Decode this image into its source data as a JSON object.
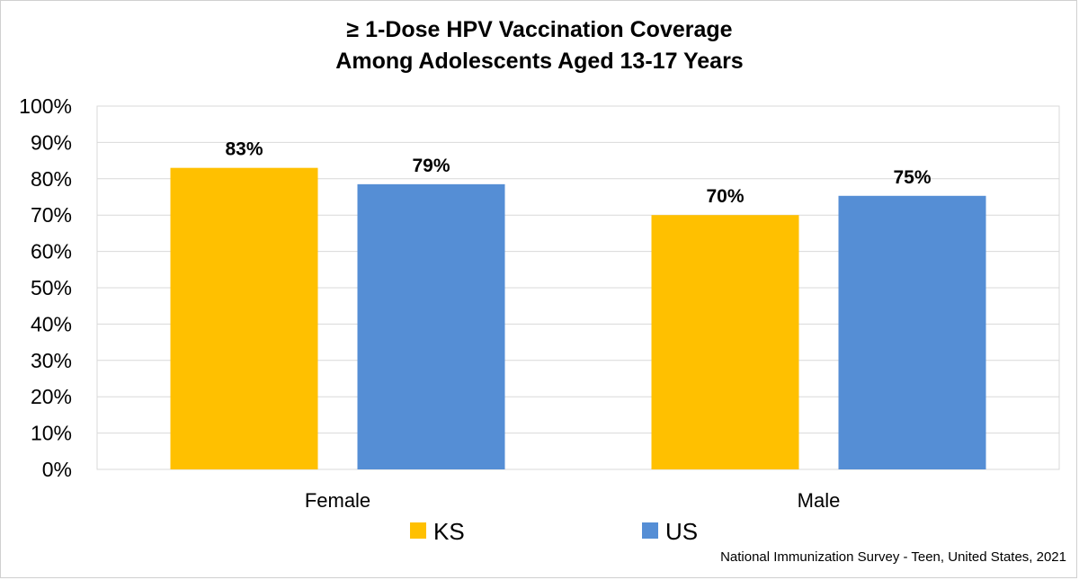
{
  "chart_data": {
    "type": "bar",
    "title": [
      "≥ 1-Dose HPV Vaccination Coverage",
      "Among Adolescents Aged 13-17 Years"
    ],
    "categories": [
      "Female",
      "Male"
    ],
    "series": [
      {
        "name": "KS",
        "values": [
          83,
          70
        ],
        "labels": [
          "83%",
          "70%"
        ],
        "color": "#FFC000"
      },
      {
        "name": "US",
        "values": [
          78.5,
          75.3
        ],
        "labels": [
          "79%",
          "75%"
        ],
        "color": "#558ED5"
      }
    ],
    "ylim": [
      0,
      100
    ],
    "yticks": [
      "0%",
      "10%",
      "20%",
      "30%",
      "40%",
      "50%",
      "60%",
      "70%",
      "80%",
      "90%",
      "100%"
    ],
    "grid": true,
    "legend": "bottom",
    "source": "National Immunization Survey - Teen, United States, 2021"
  }
}
